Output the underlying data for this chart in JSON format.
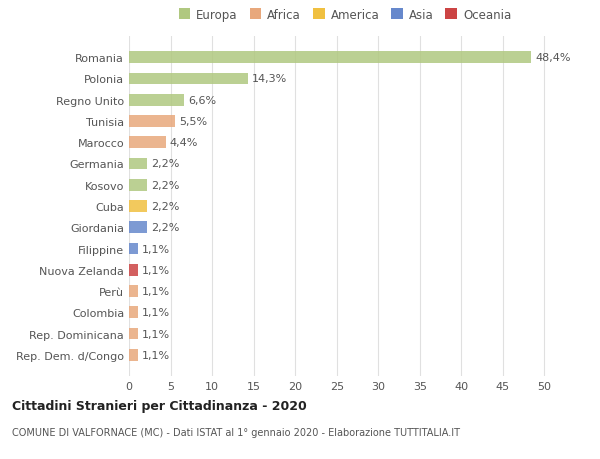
{
  "categories": [
    "Rep. Dem. d/Congo",
    "Rep. Dominicana",
    "Colombia",
    "Perù",
    "Nuova Zelanda",
    "Filippine",
    "Giordania",
    "Cuba",
    "Kosovo",
    "Germania",
    "Marocco",
    "Tunisia",
    "Regno Unito",
    "Polonia",
    "Romania"
  ],
  "values": [
    1.1,
    1.1,
    1.1,
    1.1,
    1.1,
    1.1,
    2.2,
    2.2,
    2.2,
    2.2,
    4.4,
    5.5,
    6.6,
    14.3,
    48.4
  ],
  "labels": [
    "1,1%",
    "1,1%",
    "1,1%",
    "1,1%",
    "1,1%",
    "1,1%",
    "2,2%",
    "2,2%",
    "2,2%",
    "2,2%",
    "4,4%",
    "5,5%",
    "6,6%",
    "14,3%",
    "48,4%"
  ],
  "colors": [
    "#e8a87c",
    "#e8a87c",
    "#e8a87c",
    "#e8a87c",
    "#cc4444",
    "#6688cc",
    "#6688cc",
    "#f0c040",
    "#b0c880",
    "#b0c880",
    "#e8a87c",
    "#e8a87c",
    "#b0c880",
    "#b0c880",
    "#b0c880"
  ],
  "legend_labels": [
    "Europa",
    "Africa",
    "America",
    "Asia",
    "Oceania"
  ],
  "legend_colors": [
    "#b0c880",
    "#e8a87c",
    "#f0c040",
    "#6688cc",
    "#cc4444"
  ],
  "title": "Cittadini Stranieri per Cittadinanza - 2020",
  "subtitle": "COMUNE DI VALFORNACE (MC) - Dati ISTAT al 1° gennaio 2020 - Elaborazione TUTTITALIA.IT",
  "xlim": [
    0,
    52
  ],
  "xticks": [
    0,
    5,
    10,
    15,
    20,
    25,
    30,
    35,
    40,
    45,
    50
  ],
  "bg_color": "#ffffff",
  "grid_color": "#e0e0e0",
  "bar_height": 0.55,
  "label_fontsize": 8,
  "tick_fontsize": 8
}
